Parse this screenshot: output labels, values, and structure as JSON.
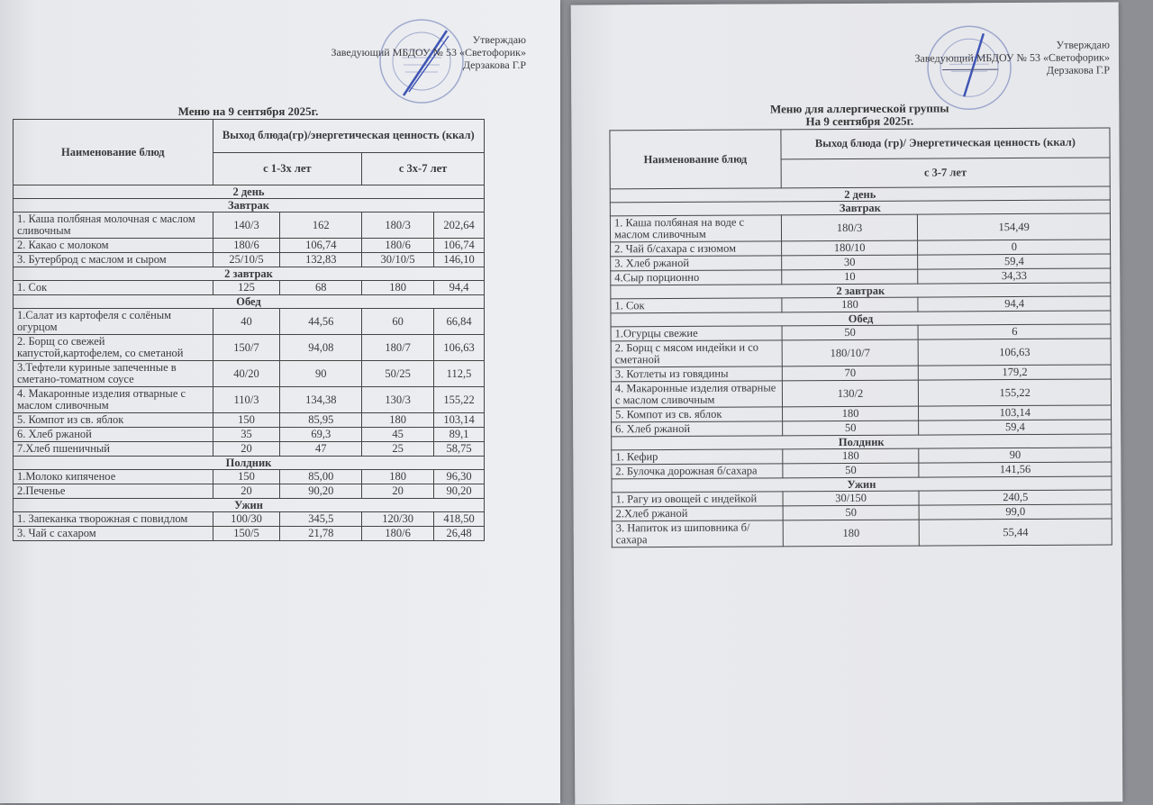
{
  "left": {
    "approval": [
      "Утверждаю",
      "Заведующий МБДОУ № 53 «Светофорик»",
      "Дерзакова Г.Р"
    ],
    "stamp_text": "«Светофорик»",
    "title": "Меню на 9 сентября  2025г.",
    "header": {
      "name_col": "Наименование блюд",
      "value_col": "Выход блюда(гр)/энергетическая ценность (ккал)",
      "age_groups": [
        "с 1-3х лет",
        "с 3х-7 лет"
      ]
    },
    "day": "2 день",
    "sections": [
      {
        "title": "Завтрак",
        "items": [
          {
            "name": "1. Каша полбяная молочная с маслом сливочным",
            "values": [
              "140/3",
              "162",
              "180/3",
              "202,64"
            ]
          },
          {
            "name": "2. Какао с молоком",
            "values": [
              "180/6",
              "106,74",
              "180/6",
              "106,74"
            ]
          },
          {
            "name": "3. Бутерброд с маслом и сыром",
            "values": [
              "25/10/5",
              "132,83",
              "30/10/5",
              "146,10"
            ]
          }
        ]
      },
      {
        "title": "2  завтрак",
        "items": [
          {
            "name": "1. Сок",
            "values": [
              "125",
              "68",
              "180",
              "94,4"
            ]
          }
        ]
      },
      {
        "title": "Обед",
        "items": [
          {
            "name": "1.Салат из картофеля с солёным огурцом",
            "values": [
              "40",
              "44,56",
              "60",
              "66,84"
            ]
          },
          {
            "name": "2. Борщ со свежей капустой,картофелем, со сметаной",
            "values": [
              "150/7",
              "94,08",
              "180/7",
              "106,63"
            ]
          },
          {
            "name": "3.Тефтели куриные запеченные в сметано-томатном соусе",
            "values": [
              "40/20",
              "90",
              "50/25",
              "112,5"
            ]
          },
          {
            "name": "4. Макаронные изделия отварные с маслом сливочным",
            "values": [
              "110/3",
              "134,38",
              "130/3",
              "155,22"
            ]
          },
          {
            "name": "5. Компот из св. яблок",
            "values": [
              "150",
              "85,95",
              "180",
              "103,14"
            ]
          },
          {
            "name": "6. Хлеб ржаной",
            "values": [
              "35",
              "69,3",
              "45",
              "89,1"
            ]
          },
          {
            "name": "7.Хлеб пшеничный",
            "values": [
              "20",
              "47",
              "25",
              "58,75"
            ]
          }
        ]
      },
      {
        "title": "Полдник",
        "items": [
          {
            "name": "1.Молоко кипяченое",
            "values": [
              "150",
              "85,00",
              "180",
              "96,30"
            ]
          },
          {
            "name": "2.Печенье",
            "values": [
              "20",
              "90,20",
              "20",
              "90,20"
            ]
          }
        ]
      },
      {
        "title": "Ужин",
        "items": [
          {
            "name": "1. Запеканка творожная с повидлом",
            "values": [
              "100/30",
              "345,5",
              "120/30",
              "418,50"
            ]
          },
          {
            "name": "3. Чай с сахаром",
            "values": [
              "150/5",
              "21,78",
              "180/6",
              "26,48"
            ]
          }
        ]
      }
    ]
  },
  "right": {
    "approval": [
      "Утверждаю",
      "Заведующий МБДОУ № 53 «Светофорик»",
      "Дерзакова Г.Р"
    ],
    "stamp_text": "«Светофорик»",
    "title": [
      "Меню для аллергической группы",
      "На 9 сентября 2025г."
    ],
    "header": {
      "name_col": "Наименование блюд",
      "value_col": "Выход блюда (гр)/ Энергетическая ценность (ккал)",
      "age_groups": [
        "с 3-7 лет"
      ]
    },
    "day": "2 день",
    "sections": [
      {
        "title": "Завтрак",
        "items": [
          {
            "name": "1. Каша полбяная на воде с маслом сливочным",
            "values": [
              "180/3",
              "154,49"
            ]
          },
          {
            "name": "2. Чай б/сахара с изюмом",
            "values": [
              "180/10",
              "0"
            ]
          },
          {
            "name": "3. Хлеб ржаной",
            "values": [
              "30",
              "59,4"
            ]
          },
          {
            "name": "4.Сыр порционно",
            "values": [
              "10",
              "34,33"
            ]
          }
        ]
      },
      {
        "title": "2 завтрак",
        "items": [
          {
            "name": "1. Сок",
            "values": [
              "180",
              "94,4"
            ]
          }
        ]
      },
      {
        "title": "Обед",
        "items": [
          {
            "name": "1.Огурцы свежие",
            "values": [
              "50",
              "6"
            ]
          },
          {
            "name": "2. Борщ с мясом индейки и со сметаной",
            "values": [
              "180/10/7",
              "106,63"
            ]
          },
          {
            "name": "3. Котлеты из говядины",
            "values": [
              "70",
              "179,2"
            ]
          },
          {
            "name": "4. Макаронные изделия отварные с маслом сливочным",
            "values": [
              "130/2",
              "155,22"
            ]
          },
          {
            "name": "5. Компот из св. яблок",
            "values": [
              "180",
              "103,14"
            ]
          },
          {
            "name": "6. Хлеб ржаной",
            "values": [
              "50",
              "59,4"
            ]
          }
        ]
      },
      {
        "title": "Полдник",
        "items": [
          {
            "name": "1. Кефир",
            "values": [
              "180",
              "90"
            ]
          },
          {
            "name": " 2. Булочка дорожная б/сахара",
            "values": [
              "50",
              "141,56"
            ]
          }
        ]
      },
      {
        "title": "Ужин",
        "items": [
          {
            "name": "1. Рагу из овощей с индейкой",
            "values": [
              "30/150",
              "240,5"
            ]
          },
          {
            "name": "2.Хлеб ржаной",
            "values": [
              "50",
              "99,0"
            ]
          },
          {
            "name": "3. Напиток из шиповника б/сахара",
            "values": [
              "180",
              "55,44"
            ]
          }
        ]
      }
    ]
  },
  "colors": {
    "paper": "#e9eaee",
    "background": "#8d8f95",
    "stamp": "#5a6fb0",
    "text": "#3a3a3e"
  }
}
